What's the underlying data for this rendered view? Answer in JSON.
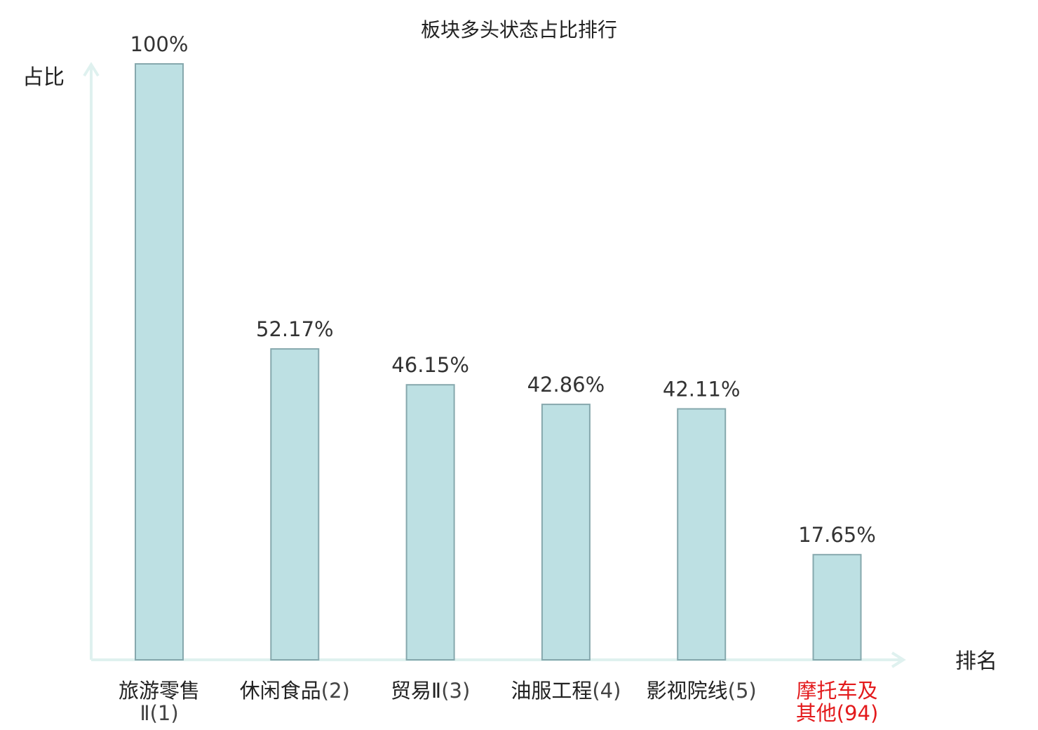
{
  "chart_data": {
    "type": "bar",
    "title": "板块多头状态占比排行",
    "ylabel": "占比",
    "xlabel": "排名",
    "ylim": [
      0,
      100
    ],
    "grid": false,
    "categories": [
      {
        "name_lines": [
          "旅游零售"
        ],
        "rank_line_prefix": "Ⅱ",
        "rank": "(1)",
        "highlight": false
      },
      {
        "name_lines": [
          "休闲食品"
        ],
        "rank_line_prefix": "",
        "rank": "(2)",
        "highlight": false
      },
      {
        "name_lines": [
          "贸易Ⅱ"
        ],
        "rank_line_prefix": "",
        "rank": "(3)",
        "highlight": false
      },
      {
        "name_lines": [
          "油服工程"
        ],
        "rank_line_prefix": "",
        "rank": "(4)",
        "highlight": false
      },
      {
        "name_lines": [
          "影视院线"
        ],
        "rank_line_prefix": "",
        "rank": "(5)",
        "highlight": false
      },
      {
        "name_lines": [
          "摩托车及",
          "其他"
        ],
        "rank_line_prefix": "",
        "rank": "(94)",
        "highlight": true
      }
    ],
    "values": [
      100,
      52.17,
      46.15,
      42.86,
      42.11,
      17.65
    ],
    "value_labels": [
      "100%",
      "52.17%",
      "46.15%",
      "42.86%",
      "42.11%",
      "17.65%"
    ]
  },
  "colors": {
    "bar_fill": "#bde0e3",
    "bar_stroke": "#86a8ad",
    "axis": "#dff1ef",
    "text": "#222222",
    "rank_text": "#444444",
    "highlight": "#e31a1c"
  }
}
